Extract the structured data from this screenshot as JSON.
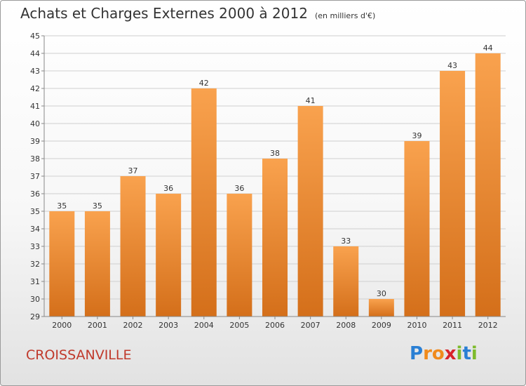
{
  "title": "Achats et Charges Externes 2000 à 2012",
  "subtitle": "(en milliers d'€)",
  "commune": "CROISSANVILLE",
  "brand": {
    "letters": [
      "P",
      "r",
      "o",
      "x",
      "i",
      "t",
      "i"
    ],
    "colors": [
      "#2a7fd4",
      "#f08a1c",
      "#f08a1c",
      "#d8232a",
      "#7dbb2c",
      "#2a7fd4",
      "#7dbb2c"
    ]
  },
  "colors": {
    "bar_light": "#f9a24e",
    "bar_dark": "#d46f1a",
    "grid": "#cfcfcf",
    "axis": "#888888",
    "text": "#333333"
  },
  "chart_data": {
    "type": "bar",
    "title": "Achats et Charges Externes 2000 à 2012",
    "subtitle": "(en milliers d'€)",
    "categories": [
      "2000",
      "2001",
      "2002",
      "2003",
      "2004",
      "2005",
      "2006",
      "2007",
      "2008",
      "2009",
      "2010",
      "2011",
      "2012"
    ],
    "values": [
      35,
      35,
      37,
      36,
      42,
      36,
      38,
      41,
      33,
      30,
      39,
      43,
      44
    ],
    "ylim": [
      29,
      45
    ],
    "yticks": [
      29,
      30,
      31,
      32,
      33,
      34,
      35,
      36,
      37,
      38,
      39,
      40,
      41,
      42,
      43,
      44,
      45
    ],
    "grid": true,
    "data_labels": true
  }
}
